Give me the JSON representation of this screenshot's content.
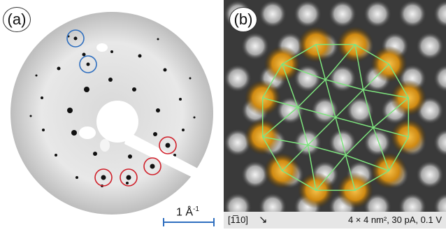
{
  "panel_a": {
    "label": "(a)",
    "scale_bar_label": "1 Å",
    "scale_bar_exponent": "-1"
  },
  "panel_b": {
    "label": "(b)",
    "direction_label": "[1̅10]",
    "scan_parameters": "4 × 4 nm², 30 pA, 0.1 V"
  },
  "colors": {
    "blue_circle": "#2f6fbf",
    "red_circle": "#d0202a",
    "overlay_lines": "#7ee37e",
    "gold_atoms": "#e0a020"
  }
}
